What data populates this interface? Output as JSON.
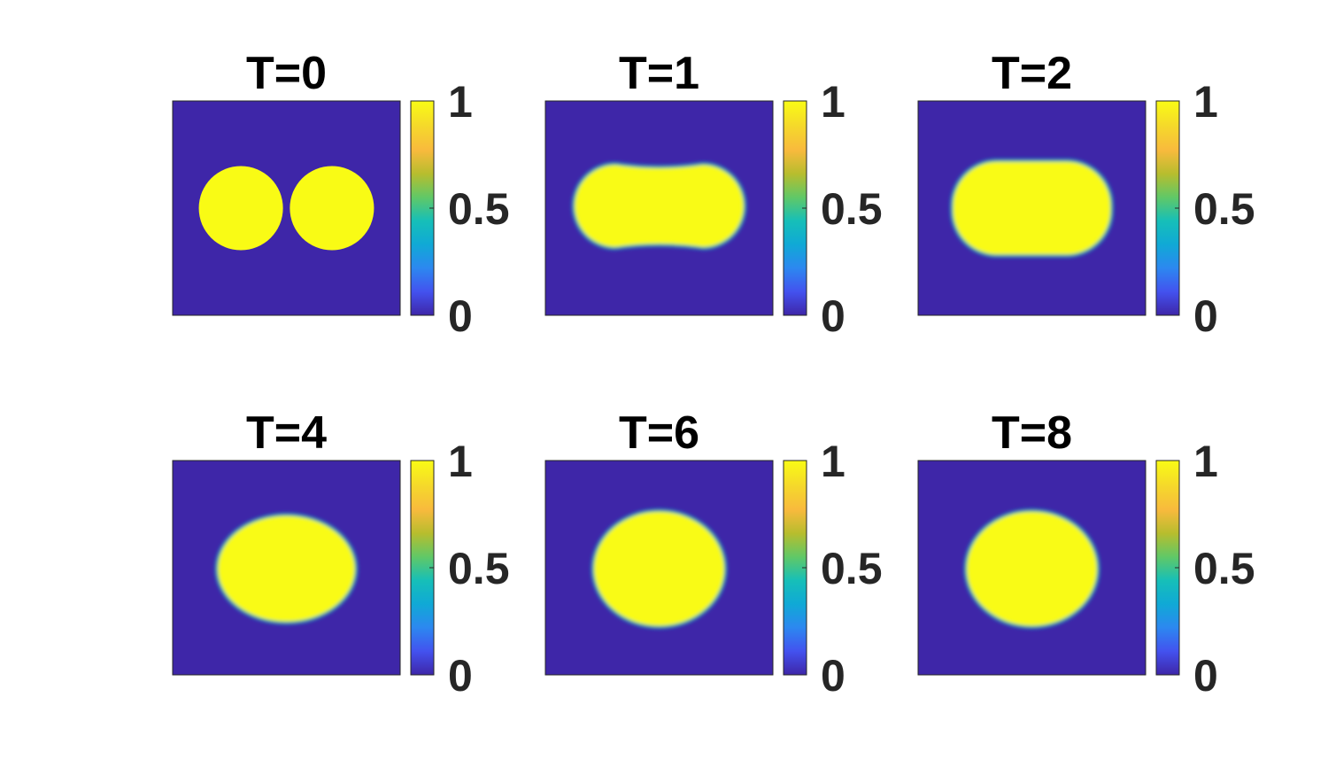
{
  "chart_data": [
    {
      "type": "heatmap",
      "title": "T=0",
      "colorbar": {
        "ticks": [
          "1",
          "0.5",
          "0"
        ],
        "range": [
          0,
          1
        ],
        "colormap": "parula"
      },
      "field": {
        "shape": "two-disks",
        "interface": "sharp",
        "inside_value": 1,
        "outside_value": 0
      }
    },
    {
      "type": "heatmap",
      "title": "T=1",
      "colorbar": {
        "ticks": [
          "1",
          "0.5",
          "0"
        ],
        "range": [
          0,
          1
        ],
        "colormap": "parula"
      },
      "field": {
        "shape": "peanut",
        "interface": "diffuse",
        "inside_value": 1,
        "outside_value": 0
      }
    },
    {
      "type": "heatmap",
      "title": "T=2",
      "colorbar": {
        "ticks": [
          "1",
          "0.5",
          "0"
        ],
        "range": [
          0,
          1
        ],
        "colormap": "parula"
      },
      "field": {
        "shape": "capsule",
        "interface": "diffuse",
        "inside_value": 1,
        "outside_value": 0
      }
    },
    {
      "type": "heatmap",
      "title": "T=4",
      "colorbar": {
        "ticks": [
          "1",
          "0.5",
          "0"
        ],
        "range": [
          0,
          1
        ],
        "colormap": "parula"
      },
      "field": {
        "shape": "ellipse",
        "interface": "diffuse",
        "inside_value": 1,
        "outside_value": 0
      }
    },
    {
      "type": "heatmap",
      "title": "T=6",
      "colorbar": {
        "ticks": [
          "1",
          "0.5",
          "0"
        ],
        "range": [
          0,
          1
        ],
        "colormap": "parula"
      },
      "field": {
        "shape": "ellipse",
        "interface": "diffuse",
        "inside_value": 1,
        "outside_value": 0
      }
    },
    {
      "type": "heatmap",
      "title": "T=8",
      "colorbar": {
        "ticks": [
          "1",
          "0.5",
          "0"
        ],
        "range": [
          0,
          1
        ],
        "colormap": "parula"
      },
      "field": {
        "shape": "ellipse",
        "interface": "diffuse",
        "inside_value": 1,
        "outside_value": 0
      }
    }
  ],
  "colors": {
    "background_value_0": "#3e26a8",
    "blob_value_1": "#f9fb15",
    "colormap_stops": [
      "#3e26a8",
      "#4352ef",
      "#2c88f0",
      "#10a9d6",
      "#16bfb8",
      "#60c867",
      "#b7bd2e",
      "#f8ba3d",
      "#f5d82b",
      "#f9fb15"
    ]
  }
}
